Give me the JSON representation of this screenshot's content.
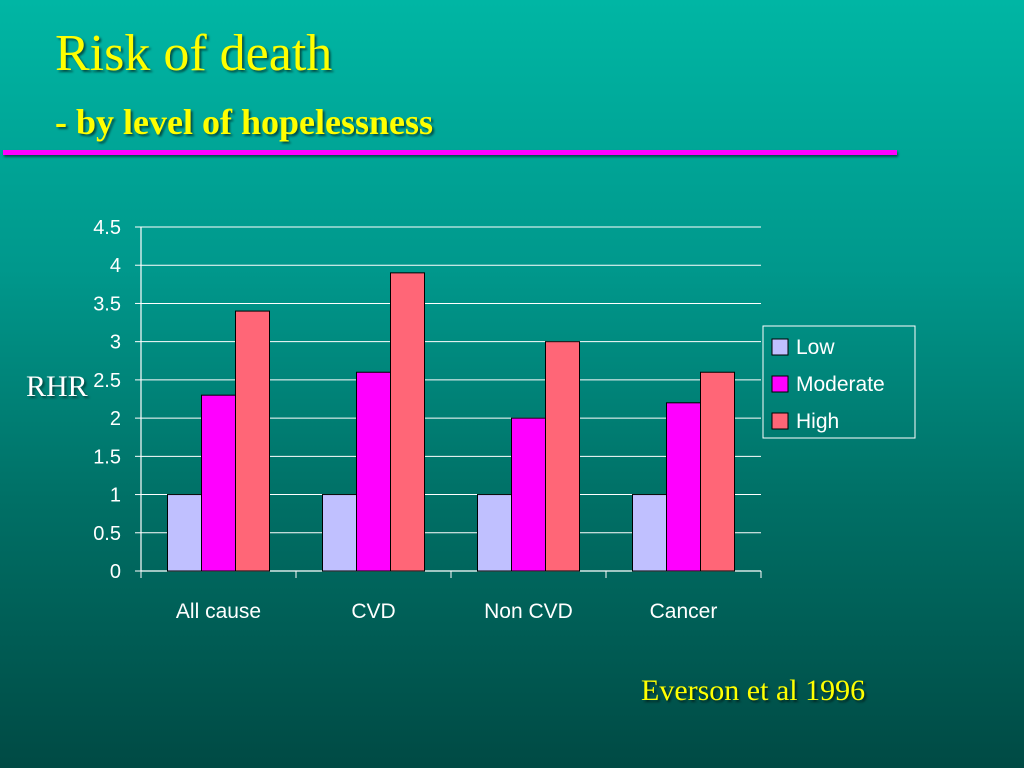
{
  "slide": {
    "title": "Risk of death",
    "subtitle": "- by level of hopelessness",
    "source": "Everson et al 1996"
  },
  "colors": {
    "title": "#ffff00",
    "rule": "#ff00ff",
    "axis_text": "#ffffff",
    "low": "#c0c0ff",
    "moderate": "#ff00ff",
    "high": "#ff6677"
  },
  "chart_data": {
    "type": "bar",
    "categories": [
      "All cause",
      "CVD",
      "Non CVD",
      "Cancer"
    ],
    "series": [
      {
        "name": "Low",
        "values": [
          1,
          1,
          1,
          1
        ]
      },
      {
        "name": "Moderate",
        "values": [
          2.3,
          2.6,
          2.0,
          2.2
        ]
      },
      {
        "name": "High",
        "values": [
          3.4,
          3.9,
          3.0,
          2.6
        ]
      }
    ],
    "ylabel": "RHR",
    "ylim": [
      0,
      4.5
    ],
    "yticks": [
      "0",
      "0.5",
      "1",
      "1.5",
      "2",
      "2.5",
      "3",
      "3.5",
      "4",
      "4.5"
    ],
    "grid": true,
    "legend_position": "right"
  }
}
